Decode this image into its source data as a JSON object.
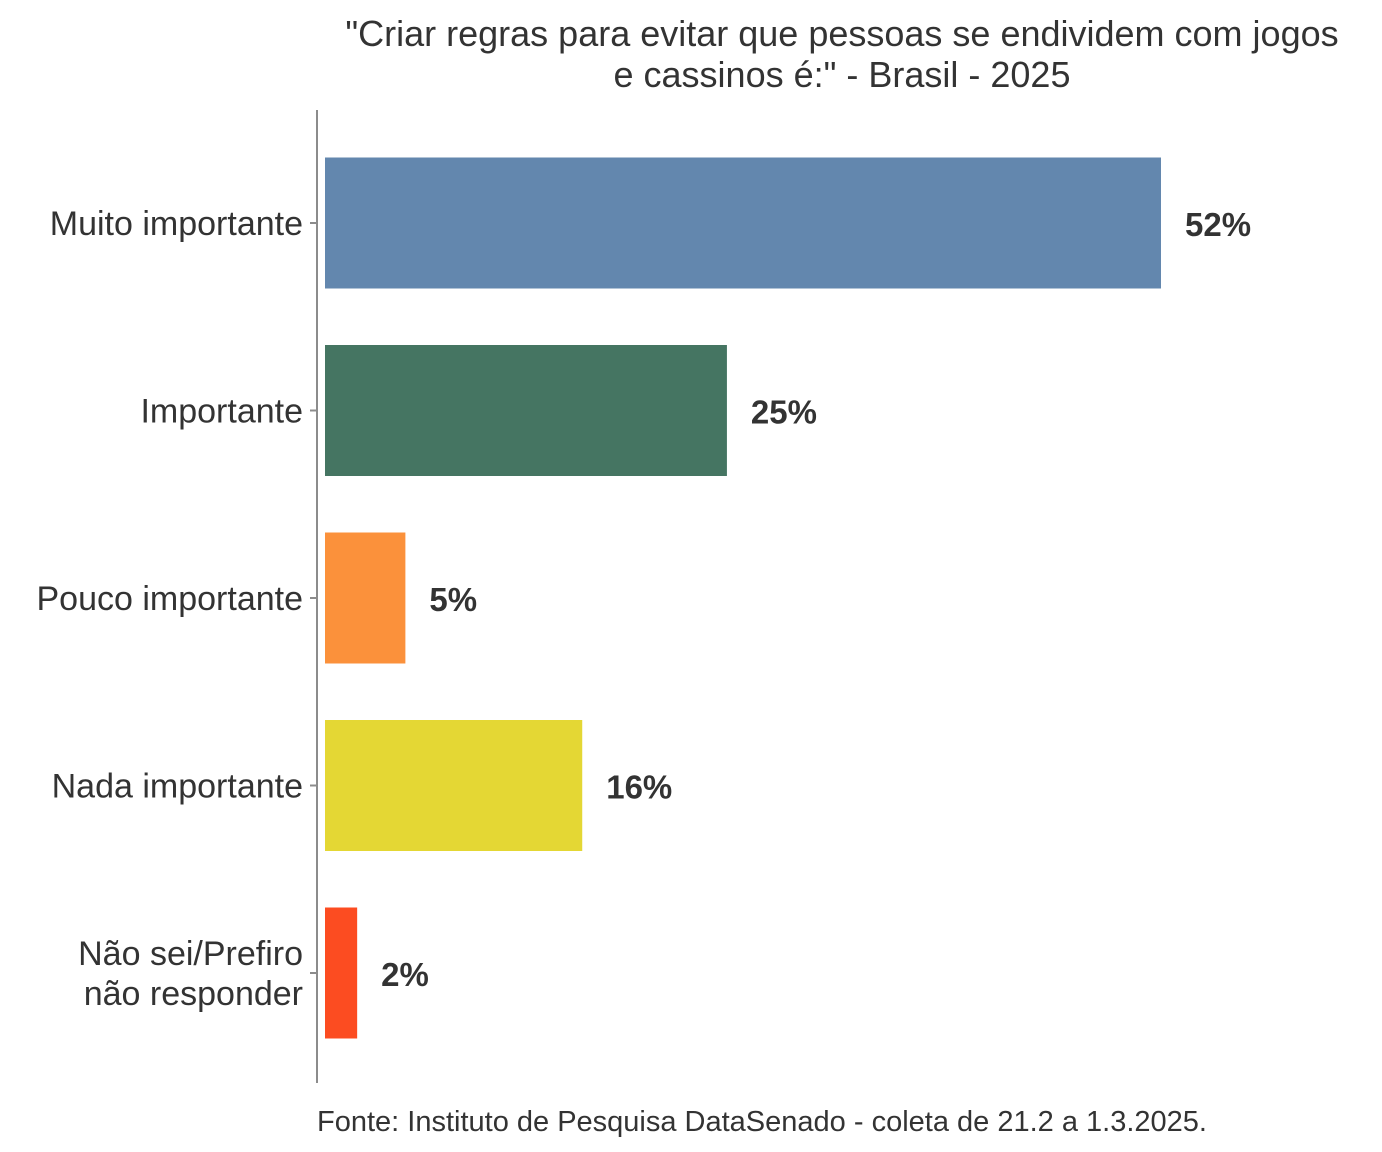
{
  "chart_data": {
    "type": "bar",
    "orientation": "horizontal",
    "title_lines": [
      "\"Criar regras para evitar que pessoas se endividem com jogos",
      "e cassinos é:\" - Brasil - 2025"
    ],
    "categories": [
      [
        "Muito importante"
      ],
      [
        "Importante"
      ],
      [
        "Pouco importante"
      ],
      [
        "Nada importante"
      ],
      [
        "Não sei/Prefiro",
        "não responder"
      ]
    ],
    "values": [
      52,
      25,
      5,
      16,
      2
    ],
    "value_labels": [
      "52%",
      "25%",
      "5%",
      "16%",
      "2%"
    ],
    "unit": "%",
    "colors": [
      "#6387ae",
      "#457562",
      "#fb913b",
      "#e4d734",
      "#fc4c21"
    ],
    "xlim": [
      0,
      60
    ],
    "grid": false,
    "legend": "none",
    "caption": "Fonte: Instituto de Pesquisa DataSenado - coleta de 21.2 a 1.3.2025."
  }
}
